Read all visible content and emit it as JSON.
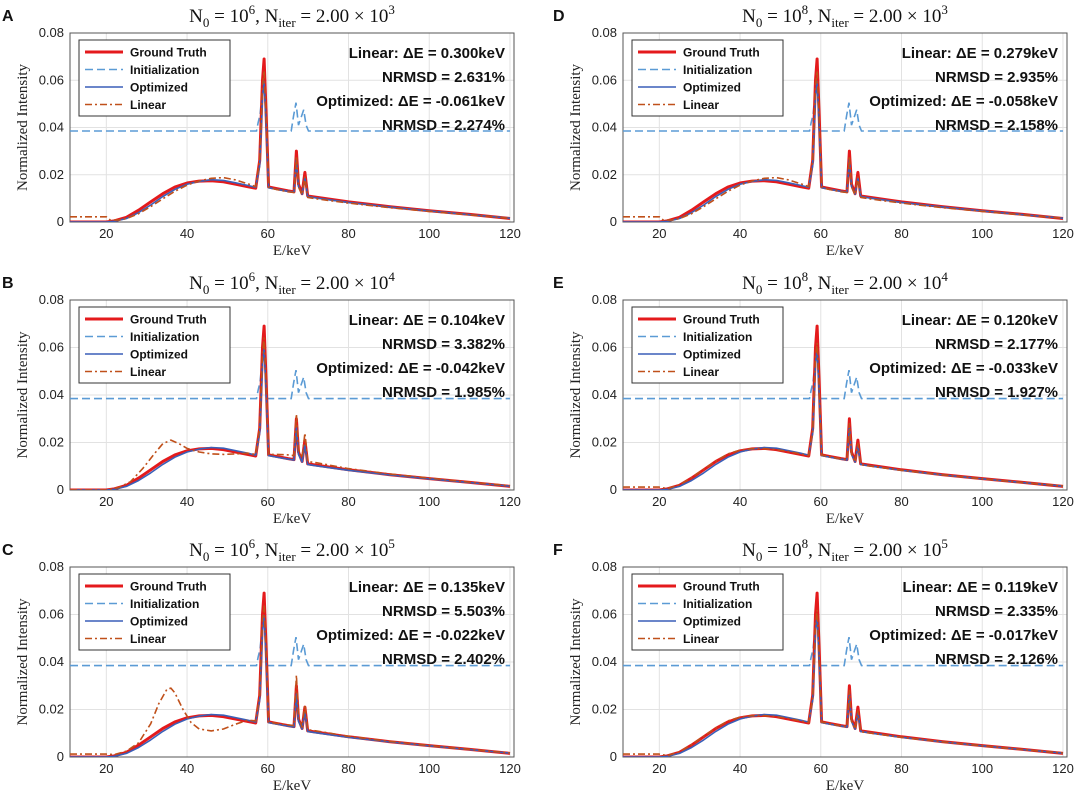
{
  "figure": {
    "panels": [
      {
        "letter": "A",
        "title": {
          "n0_label": "N",
          "n0_sub": "0",
          "n0_eq": " = 10",
          "n0_exp": "6",
          "sep": ",    ",
          "niter_label": "N",
          "niter_sub": "iter",
          "niter_eq": " = 2.00 × 10",
          "niter_exp": "3"
        },
        "annotations": {
          "linear_dE": "Linear: ΔE = 0.300keV",
          "linear_nrmsd": "NRMSD = 2.631%",
          "opt_dE": "Optimized: ΔE = -0.061keV",
          "opt_nrmsd": "NRMSD = 2.274%"
        },
        "linear_variant": 1
      },
      {
        "letter": "B",
        "title": {
          "n0_label": "N",
          "n0_sub": "0",
          "n0_eq": " = 10",
          "n0_exp": "6",
          "sep": ",    ",
          "niter_label": "N",
          "niter_sub": "iter",
          "niter_eq": " = 2.00 × 10",
          "niter_exp": "4"
        },
        "annotations": {
          "linear_dE": "Linear: ΔE = 0.104keV",
          "linear_nrmsd": "NRMSD = 3.382%",
          "opt_dE": "Optimized: ΔE = -0.042keV",
          "opt_nrmsd": "NRMSD = 1.985%"
        },
        "linear_variant": 2
      },
      {
        "letter": "C",
        "title": {
          "n0_label": "N",
          "n0_sub": "0",
          "n0_eq": " = 10",
          "n0_exp": "6",
          "sep": ",    ",
          "niter_label": "N",
          "niter_sub": "iter",
          "niter_eq": " = 2.00 × 10",
          "niter_exp": "5"
        },
        "annotations": {
          "linear_dE": "Linear: ΔE = 0.135keV",
          "linear_nrmsd": "NRMSD = 5.503%",
          "opt_dE": "Optimized: ΔE = -0.022keV",
          "opt_nrmsd": "NRMSD = 2.402%"
        },
        "linear_variant": 3
      },
      {
        "letter": "D",
        "title": {
          "n0_label": "N",
          "n0_sub": "0",
          "n0_eq": " = 10",
          "n0_exp": "8",
          "sep": ",    ",
          "niter_label": "N",
          "niter_sub": "iter",
          "niter_eq": " = 2.00 × 10",
          "niter_exp": "3"
        },
        "annotations": {
          "linear_dE": "Linear: ΔE = 0.279keV",
          "linear_nrmsd": "NRMSD = 2.935%",
          "opt_dE": "Optimized: ΔE = -0.058keV",
          "opt_nrmsd": "NRMSD = 2.158%"
        },
        "linear_variant": 1
      },
      {
        "letter": "E",
        "title": {
          "n0_label": "N",
          "n0_sub": "0",
          "n0_eq": " = 10",
          "n0_exp": "8",
          "sep": ",    ",
          "niter_label": "N",
          "niter_sub": "iter",
          "niter_eq": " = 2.00 × 10",
          "niter_exp": "4"
        },
        "annotations": {
          "linear_dE": "Linear: ΔE = 0.120keV",
          "linear_nrmsd": "NRMSD = 2.177%",
          "opt_dE": "Optimized: ΔE = -0.033keV",
          "opt_nrmsd": "NRMSD = 1.927%"
        },
        "linear_variant": 4
      },
      {
        "letter": "F",
        "title": {
          "n0_label": "N",
          "n0_sub": "0",
          "n0_eq": " = 10",
          "n0_exp": "8",
          "sep": ",    ",
          "niter_label": "N",
          "niter_sub": "iter",
          "niter_eq": " = 2.00 × 10",
          "niter_exp": "5"
        },
        "annotations": {
          "linear_dE": "Linear: ΔE = 0.119keV",
          "linear_nrmsd": "NRMSD = 2.335%",
          "opt_dE": "Optimized: ΔE = -0.017keV",
          "opt_nrmsd": "NRMSD = 2.126%"
        },
        "linear_variant": 4
      }
    ]
  },
  "chart_data": {
    "type": "line",
    "panel_count": 6,
    "xlabel": "E/keV",
    "ylabel": "Normalized Intensity",
    "xlim": [
      11,
      121
    ],
    "ylim": [
      0,
      0.08
    ],
    "xticks": [
      20,
      40,
      60,
      80,
      100,
      120
    ],
    "xtick_labels": [
      "20",
      "40",
      "60",
      "80",
      "100",
      "120"
    ],
    "yticks": [
      0,
      0.02,
      0.04,
      0.06,
      0.08
    ],
    "ytick_labels": [
      "0",
      "0.02",
      "0.04",
      "0.06",
      "0.08"
    ],
    "grid": true,
    "legend_position": "top-left",
    "legend": [
      "Ground Truth",
      "Initialization",
      "Optimized",
      "Linear"
    ],
    "colors": {
      "ground_truth": "#e41a1c",
      "initialization": "#5b9bd5",
      "optimized": "#3a5fb8",
      "linear": "#c0501a",
      "grid": "#e2e2e2",
      "axis": "#555555"
    },
    "series_profiles": {
      "ground_truth": [
        [
          11,
          0
        ],
        [
          20,
          0
        ],
        [
          22,
          0.0005
        ],
        [
          25,
          0.002
        ],
        [
          28,
          0.005
        ],
        [
          31,
          0.0085
        ],
        [
          34,
          0.012
        ],
        [
          37,
          0.0148
        ],
        [
          40,
          0.0165
        ],
        [
          43,
          0.0173
        ],
        [
          46,
          0.0175
        ],
        [
          49,
          0.017
        ],
        [
          52,
          0.016
        ],
        [
          55,
          0.015
        ],
        [
          57,
          0.0143
        ],
        [
          58,
          0.026
        ],
        [
          58.7,
          0.06
        ],
        [
          59.1,
          0.069
        ],
        [
          59.6,
          0.045
        ],
        [
          60.2,
          0.0148
        ],
        [
          62,
          0.0142
        ],
        [
          65,
          0.0132
        ],
        [
          66.5,
          0.0128
        ],
        [
          67.1,
          0.03
        ],
        [
          67.6,
          0.016
        ],
        [
          68.5,
          0.012
        ],
        [
          69.2,
          0.021
        ],
        [
          69.9,
          0.011
        ],
        [
          72,
          0.0105
        ],
        [
          80,
          0.0085
        ],
        [
          90,
          0.0065
        ],
        [
          100,
          0.0048
        ],
        [
          110,
          0.0032
        ],
        [
          120,
          0.0015
        ]
      ],
      "initialization": [
        [
          11,
          0.0385
        ],
        [
          57.2,
          0.0385
        ],
        [
          57.6,
          0.042
        ],
        [
          58.1,
          0.0455
        ],
        [
          58.6,
          0.055
        ],
        [
          59,
          0.0625
        ],
        [
          59.4,
          0.052
        ],
        [
          59.9,
          0.0385
        ],
        [
          65.8,
          0.0385
        ],
        [
          66.4,
          0.045
        ],
        [
          67,
          0.0505
        ],
        [
          67.6,
          0.041
        ],
        [
          68.3,
          0.0445
        ],
        [
          68.9,
          0.0475
        ],
        [
          69.5,
          0.041
        ],
        [
          70.1,
          0.0385
        ],
        [
          120,
          0.0385
        ]
      ],
      "optimized": [
        [
          11,
          0
        ],
        [
          20,
          0
        ],
        [
          22,
          0.0003
        ],
        [
          25,
          0.0015
        ],
        [
          28,
          0.004
        ],
        [
          31,
          0.0072
        ],
        [
          34,
          0.0108
        ],
        [
          37,
          0.0138
        ],
        [
          40,
          0.016
        ],
        [
          43,
          0.0172
        ],
        [
          46,
          0.0179
        ],
        [
          49,
          0.0176
        ],
        [
          52,
          0.0166
        ],
        [
          55,
          0.0155
        ],
        [
          57,
          0.0147
        ],
        [
          58,
          0.024
        ],
        [
          58.7,
          0.053
        ],
        [
          59.1,
          0.0595
        ],
        [
          59.6,
          0.041
        ],
        [
          60.2,
          0.0145
        ],
        [
          62,
          0.0139
        ],
        [
          65,
          0.013
        ],
        [
          66.5,
          0.0126
        ],
        [
          67.1,
          0.0265
        ],
        [
          67.6,
          0.015
        ],
        [
          68.5,
          0.0118
        ],
        [
          69.2,
          0.0188
        ],
        [
          69.9,
          0.0108
        ],
        [
          72,
          0.0102
        ],
        [
          80,
          0.0083
        ],
        [
          90,
          0.0064
        ],
        [
          100,
          0.0047
        ],
        [
          110,
          0.0031
        ],
        [
          120,
          0.0016
        ]
      ],
      "linear_variants": {
        "1": [
          [
            11,
            0.0022
          ],
          [
            20,
            0.0022
          ],
          [
            21,
            0.0008
          ],
          [
            23,
            0.0008
          ],
          [
            25,
            0.0015
          ],
          [
            28,
            0.0035
          ],
          [
            31,
            0.0065
          ],
          [
            34,
            0.0098
          ],
          [
            37,
            0.013
          ],
          [
            40,
            0.0156
          ],
          [
            43,
            0.0174
          ],
          [
            46,
            0.0185
          ],
          [
            49,
            0.0188
          ],
          [
            52,
            0.0178
          ],
          [
            55,
            0.0162
          ],
          [
            57,
            0.015
          ],
          [
            58,
            0.026
          ],
          [
            58.7,
            0.058
          ],
          [
            59.1,
            0.064
          ],
          [
            59.6,
            0.044
          ],
          [
            60.2,
            0.0148
          ],
          [
            62,
            0.0138
          ],
          [
            65,
            0.0128
          ],
          [
            66.5,
            0.0125
          ],
          [
            67.1,
            0.028
          ],
          [
            67.6,
            0.0148
          ],
          [
            68.5,
            0.0116
          ],
          [
            69.2,
            0.019
          ],
          [
            69.9,
            0.0104
          ],
          [
            72,
            0.0098
          ],
          [
            80,
            0.008
          ],
          [
            90,
            0.0061
          ],
          [
            100,
            0.0045
          ],
          [
            110,
            0.003
          ],
          [
            120,
            0.0016
          ]
        ],
        "2": [
          [
            11,
            0
          ],
          [
            20,
            0
          ],
          [
            23,
            0.001
          ],
          [
            26,
            0.0035
          ],
          [
            29,
            0.009
          ],
          [
            32,
            0.0155
          ],
          [
            34,
            0.0195
          ],
          [
            36,
            0.021
          ],
          [
            38,
            0.0195
          ],
          [
            40,
            0.0175
          ],
          [
            43,
            0.016
          ],
          [
            46,
            0.0152
          ],
          [
            49,
            0.015
          ],
          [
            52,
            0.0152
          ],
          [
            55,
            0.0155
          ],
          [
            57,
            0.015
          ],
          [
            58,
            0.026
          ],
          [
            58.7,
            0.058
          ],
          [
            59.1,
            0.064
          ],
          [
            59.6,
            0.044
          ],
          [
            60.2,
            0.015
          ],
          [
            62,
            0.015
          ],
          [
            65,
            0.0148
          ],
          [
            66.5,
            0.0145
          ],
          [
            67.1,
            0.032
          ],
          [
            67.6,
            0.017
          ],
          [
            68.5,
            0.0135
          ],
          [
            69.2,
            0.024
          ],
          [
            69.9,
            0.012
          ],
          [
            72,
            0.0115
          ],
          [
            80,
            0.009
          ],
          [
            90,
            0.0068
          ],
          [
            100,
            0.005
          ],
          [
            110,
            0.0033
          ],
          [
            120,
            0.0018
          ]
        ],
        "3": [
          [
            11,
            0.0012
          ],
          [
            20,
            0.0012
          ],
          [
            22,
            0.001
          ],
          [
            25,
            0.0025
          ],
          [
            28,
            0.006
          ],
          [
            31,
            0.014
          ],
          [
            33,
            0.0225
          ],
          [
            35,
            0.0285
          ],
          [
            36,
            0.029
          ],
          [
            37,
            0.027
          ],
          [
            39,
            0.02
          ],
          [
            41,
            0.0145
          ],
          [
            43,
            0.0118
          ],
          [
            46,
            0.011
          ],
          [
            49,
            0.0118
          ],
          [
            52,
            0.0138
          ],
          [
            55,
            0.0155
          ],
          [
            57,
            0.0152
          ],
          [
            58,
            0.026
          ],
          [
            58.7,
            0.058
          ],
          [
            59.1,
            0.0635
          ],
          [
            59.6,
            0.044
          ],
          [
            60.2,
            0.0148
          ],
          [
            62,
            0.0142
          ],
          [
            65,
            0.0135
          ],
          [
            66.5,
            0.0132
          ],
          [
            67.1,
            0.0345
          ],
          [
            67.6,
            0.017
          ],
          [
            68.5,
            0.0125
          ],
          [
            69.2,
            0.022
          ],
          [
            69.9,
            0.0115
          ],
          [
            72,
            0.011
          ],
          [
            80,
            0.0087
          ],
          [
            90,
            0.0066
          ],
          [
            100,
            0.0048
          ],
          [
            110,
            0.0032
          ],
          [
            120,
            0.0017
          ]
        ],
        "4": [
          [
            11,
            0.0012
          ],
          [
            20,
            0.0012
          ],
          [
            22,
            0.0006
          ],
          [
            25,
            0.0022
          ],
          [
            28,
            0.0052
          ],
          [
            31,
            0.0088
          ],
          [
            34,
            0.0122
          ],
          [
            37,
            0.0152
          ],
          [
            40,
            0.0168
          ],
          [
            43,
            0.0174
          ],
          [
            46,
            0.0174
          ],
          [
            49,
            0.017
          ],
          [
            52,
            0.0162
          ],
          [
            55,
            0.0152
          ],
          [
            57,
            0.0145
          ],
          [
            58,
            0.025
          ],
          [
            58.7,
            0.056
          ],
          [
            59.1,
            0.062
          ],
          [
            59.6,
            0.043
          ],
          [
            60.2,
            0.0147
          ],
          [
            62,
            0.0141
          ],
          [
            65,
            0.0131
          ],
          [
            66.5,
            0.0127
          ],
          [
            67.1,
            0.028
          ],
          [
            67.6,
            0.0152
          ],
          [
            68.5,
            0.0118
          ],
          [
            69.2,
            0.0195
          ],
          [
            69.9,
            0.0107
          ],
          [
            72,
            0.0101
          ],
          [
            80,
            0.0083
          ],
          [
            90,
            0.0064
          ],
          [
            100,
            0.0047
          ],
          [
            110,
            0.0031
          ],
          [
            120,
            0.0017
          ]
        ]
      }
    }
  }
}
